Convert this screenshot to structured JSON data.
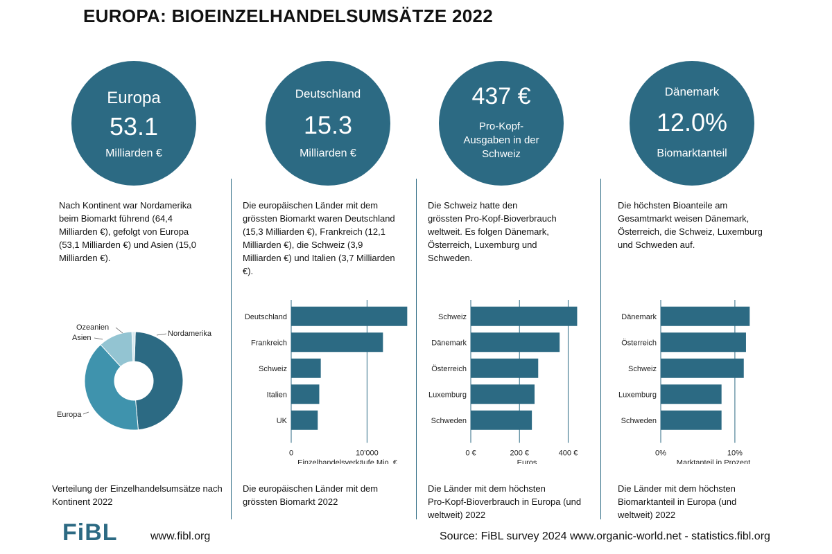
{
  "title": "EUROPA: BIOEINZELHANDELSUMSÄTZE 2022",
  "colors": {
    "primary": "#2c6a83",
    "mid": "#3f93ad",
    "light": "#93c4d2",
    "pale": "#d7e9ef"
  },
  "circles": [
    {
      "top": "Europa",
      "value": "53.1",
      "bottom": "Milliarden €"
    },
    {
      "top": "Deutschland",
      "value": "15.3",
      "bottom": "Milliarden €"
    },
    {
      "value": "437 €",
      "sub1": "Pro-Kopf-",
      "sub2": "Ausgaben in der",
      "sub3": "Schweiz"
    },
    {
      "top": "Dänemark",
      "value": "12.0%",
      "bottom": "Biomarktanteil"
    }
  ],
  "descriptions": [
    [
      "Nach Kontinent war Nordamerika",
      "beim Biomarkt führend (64,4",
      "Milliarden €), gefolgt von Europa",
      "(53,1 Milliarden €) und Asien (15,0",
      "Milliarden €)."
    ],
    [
      "Die europäischen Länder mit dem",
      "grössten Biomarkt waren Deutschland",
      "(15,3 Milliarden €), Frankreich (12,1",
      "Milliarden €), die Schweiz (3,9",
      "Milliarden €) und Italien (3,7 Milliarden",
      "€)."
    ],
    [
      "Die Schweiz hatte den",
      "grössten Pro-Kopf-Bioverbrauch",
      "weltweit. Es folgen Dänemark,",
      "Österreich, Luxemburg und",
      "Schweden."
    ],
    [
      "Die höchsten Bioanteile am",
      "Gesamtmarkt weisen Dänemark,",
      "Österreich, die Schweiz, Luxemburg",
      "und Schweden auf."
    ]
  ],
  "captions": [
    [
      "Verteilung der Einzelhandelsumsätze nach",
      "Kontinent 2022"
    ],
    [
      "Die europäischen  Länder mit dem",
      "grössten Biomarkt 2022"
    ],
    [
      "Die Länder mit dem höchsten",
      "Pro-Kopf-Bioverbrauch in Europa (und",
      "weltweit) 2022"
    ],
    [
      "Die Länder mit dem höchsten",
      "Biomarktanteil in Europa (und",
      "weltweit) 2022"
    ]
  ],
  "footer": {
    "logo": "FiBL",
    "url": "www.fibl.org",
    "source": "Source: FiBL survey 2024 www.organic-world.net - statistics.fibl.org"
  },
  "chart_data": [
    {
      "type": "pie",
      "donut": true,
      "categories": [
        "Nordamerika",
        "Europa",
        "Asien",
        "Ozeanien"
      ],
      "values": [
        64.4,
        53.1,
        15.0,
        1.5
      ],
      "colors": [
        "#2c6a83",
        "#3f93ad",
        "#93c4d2",
        "#d7e9ef"
      ]
    },
    {
      "type": "bar",
      "orientation": "horizontal",
      "categories": [
        "Deutschland",
        "Frankreich",
        "Schweiz",
        "Italien",
        "UK"
      ],
      "values": [
        15300,
        12100,
        3900,
        3700,
        3500
      ],
      "xlim": [
        0,
        16000
      ],
      "xticks": [
        0,
        10000
      ],
      "xticklabels": [
        "0",
        "10'000"
      ],
      "xlabel": "Einzelhandelsverkäufe Mio. €"
    },
    {
      "type": "bar",
      "orientation": "horizontal",
      "categories": [
        "Schweiz",
        "Dänemark",
        "Österreich",
        "Luxemburg",
        "Schweden"
      ],
      "values": [
        437,
        365,
        277,
        262,
        251
      ],
      "xlim": [
        0,
        450
      ],
      "xticks": [
        0,
        200,
        400
      ],
      "xticklabels": [
        "0 €",
        "200 €",
        "400 €"
      ],
      "xlabel": "Euros"
    },
    {
      "type": "bar",
      "orientation": "horizontal",
      "categories": [
        "Dänemark",
        "Österreich",
        "Schweiz",
        "Luxemburg",
        "Schweden"
      ],
      "values": [
        12.0,
        11.5,
        11.2,
        8.2,
        8.2
      ],
      "xlim": [
        0,
        13
      ],
      "xticks": [
        0,
        10
      ],
      "xticklabels": [
        "0%",
        "10%"
      ],
      "xlabel": "Marktanteil in Prozent"
    }
  ]
}
